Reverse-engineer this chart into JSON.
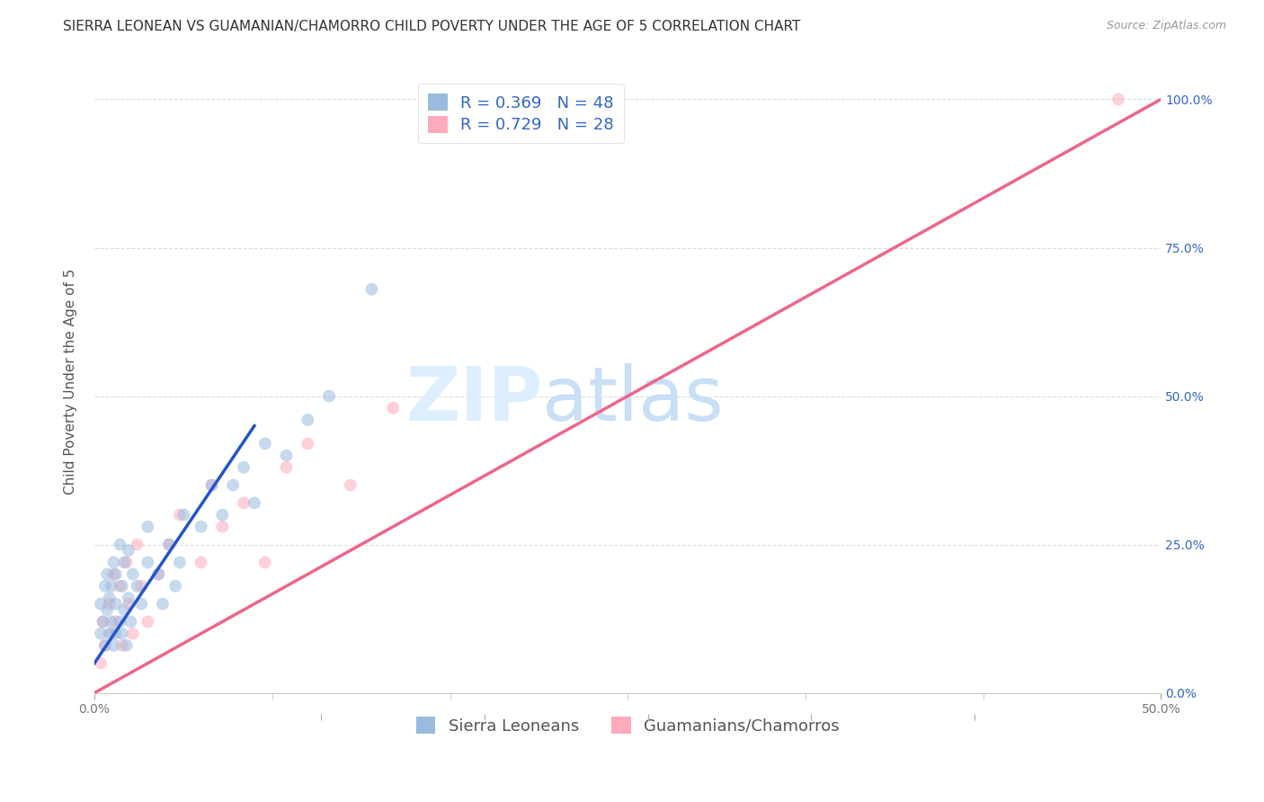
{
  "title": "SIERRA LEONEAN VS GUAMANIAN/CHAMORRO CHILD POVERTY UNDER THE AGE OF 5 CORRELATION CHART",
  "source": "Source: ZipAtlas.com",
  "ylabel": "Child Poverty Under the Age of 5",
  "xticklabels_pos": [
    0.0,
    0.5
  ],
  "xticklabels": [
    "0.0%",
    "50.0%"
  ],
  "yticklabels": [
    "0.0%",
    "25.0%",
    "50.0%",
    "75.0%",
    "100.0%"
  ],
  "ytick_vals": [
    0.0,
    0.25,
    0.5,
    0.75,
    1.0
  ],
  "xlim": [
    0.0,
    0.5
  ],
  "ylim": [
    0.0,
    1.05
  ],
  "legend1_r": "0.369",
  "legend1_n": "48",
  "legend2_r": "0.729",
  "legend2_n": "28",
  "legend_label1": "Sierra Leoneans",
  "legend_label2": "Guamanians/Chamorros",
  "color_blue": "#99BBDD",
  "color_pink": "#FFAABB",
  "color_blue_line": "#2255CC",
  "color_pink_line": "#EE6688",
  "color_ref_line": "#AACCEE",
  "color_legend_text": "#3366CC",
  "watermark_zip": "ZIP",
  "watermark_atlas": "atlas",
  "grid_color": "#DDDDDD",
  "background_color": "#FFFFFF",
  "title_fontsize": 11,
  "axis_label_fontsize": 11,
  "tick_fontsize": 10,
  "legend_fontsize": 13,
  "watermark_fontsize_zip": 60,
  "watermark_fontsize_atlas": 60,
  "watermark_color": "#DDEEFF",
  "scatter_size": 100,
  "scatter_alpha": 0.55,
  "blue_scatter_x": [
    0.003,
    0.003,
    0.004,
    0.005,
    0.005,
    0.006,
    0.006,
    0.007,
    0.007,
    0.008,
    0.008,
    0.009,
    0.009,
    0.01,
    0.01,
    0.01,
    0.012,
    0.012,
    0.013,
    0.013,
    0.014,
    0.014,
    0.015,
    0.016,
    0.016,
    0.017,
    0.018,
    0.02,
    0.022,
    0.025,
    0.025,
    0.03,
    0.032,
    0.035,
    0.038,
    0.04,
    0.042,
    0.05,
    0.055,
    0.06,
    0.065,
    0.07,
    0.075,
    0.08,
    0.09,
    0.1,
    0.11,
    0.13
  ],
  "blue_scatter_y": [
    0.15,
    0.1,
    0.12,
    0.08,
    0.18,
    0.14,
    0.2,
    0.1,
    0.16,
    0.12,
    0.18,
    0.08,
    0.22,
    0.1,
    0.15,
    0.2,
    0.12,
    0.25,
    0.1,
    0.18,
    0.14,
    0.22,
    0.08,
    0.16,
    0.24,
    0.12,
    0.2,
    0.18,
    0.15,
    0.22,
    0.28,
    0.2,
    0.15,
    0.25,
    0.18,
    0.22,
    0.3,
    0.28,
    0.35,
    0.3,
    0.35,
    0.38,
    0.32,
    0.42,
    0.4,
    0.46,
    0.5,
    0.68
  ],
  "pink_scatter_x": [
    0.003,
    0.004,
    0.005,
    0.007,
    0.008,
    0.009,
    0.01,
    0.012,
    0.013,
    0.015,
    0.016,
    0.018,
    0.02,
    0.022,
    0.025,
    0.03,
    0.035,
    0.04,
    0.05,
    0.055,
    0.06,
    0.07,
    0.08,
    0.09,
    0.1,
    0.12,
    0.14,
    0.48
  ],
  "pink_scatter_y": [
    0.05,
    0.12,
    0.08,
    0.15,
    0.1,
    0.2,
    0.12,
    0.18,
    0.08,
    0.22,
    0.15,
    0.1,
    0.25,
    0.18,
    0.12,
    0.2,
    0.25,
    0.3,
    0.22,
    0.35,
    0.28,
    0.32,
    0.22,
    0.38,
    0.42,
    0.35,
    0.48,
    1.0
  ],
  "blue_line_x": [
    0.0,
    0.075
  ],
  "blue_line_y": [
    0.05,
    0.45
  ],
  "pink_line_x": [
    0.0,
    0.5
  ],
  "pink_line_y": [
    0.0,
    1.0
  ],
  "ref_line_x": [
    0.0,
    0.5
  ],
  "ref_line_y": [
    0.0,
    1.0
  ],
  "xtick_minor": [
    0.0,
    0.0833,
    0.1667,
    0.25,
    0.3333,
    0.4167,
    0.5
  ]
}
